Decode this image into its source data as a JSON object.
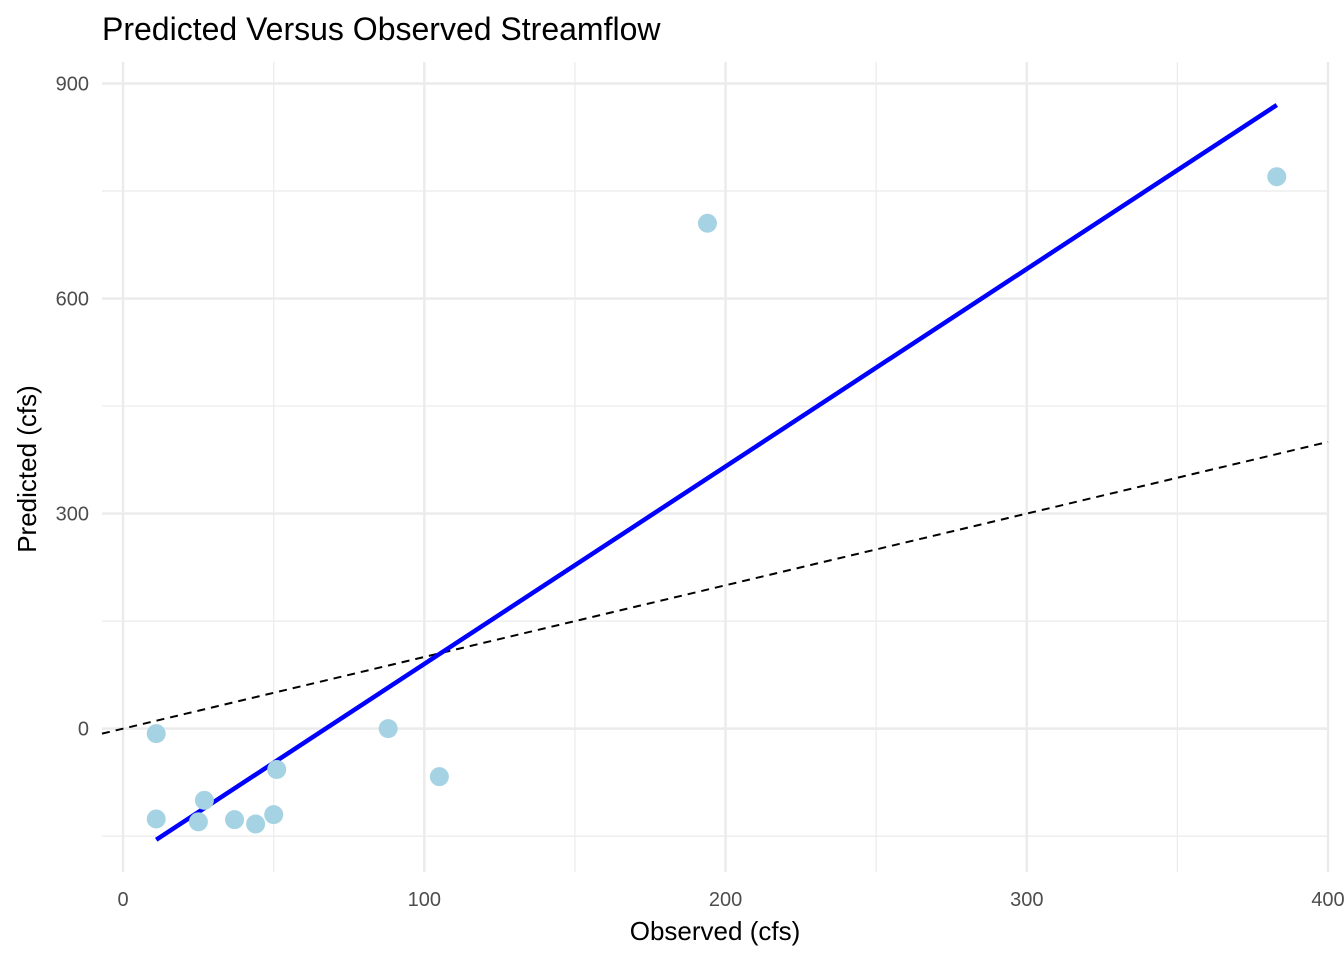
{
  "chart_data": {
    "type": "scatter",
    "title": "Predicted Versus Observed Streamflow",
    "xlabel": "Observed (cfs)",
    "ylabel": "Predicted (cfs)",
    "xlim": [
      -7,
      400
    ],
    "ylim": [
      -200,
      930
    ],
    "x_ticks": [
      0,
      100,
      200,
      300,
      400
    ],
    "y_ticks": [
      0,
      300,
      600,
      900
    ],
    "x_tick_labels": [
      "0",
      "100",
      "200",
      "300",
      "400"
    ],
    "y_tick_labels": [
      "0",
      "300",
      "600",
      "900"
    ],
    "grid": true,
    "points": [
      {
        "x": 11,
        "y": -7
      },
      {
        "x": 11,
        "y": -126
      },
      {
        "x": 25,
        "y": -130
      },
      {
        "x": 27,
        "y": -100
      },
      {
        "x": 37,
        "y": -127
      },
      {
        "x": 44,
        "y": -133
      },
      {
        "x": 50,
        "y": -120
      },
      {
        "x": 51,
        "y": -57
      },
      {
        "x": 88,
        "y": 0
      },
      {
        "x": 105,
        "y": -67
      },
      {
        "x": 194,
        "y": 705
      },
      {
        "x": 383,
        "y": 770
      }
    ],
    "fit_line": {
      "x": [
        11,
        383
      ],
      "y": [
        -155,
        870
      ]
    },
    "identity_line": {
      "x": [
        -7,
        400
      ],
      "y": [
        -7,
        400
      ]
    },
    "colors": {
      "points": "#a6d3e3",
      "fit_line": "#0000ff",
      "identity_line": "#000000",
      "grid": "#ebebeb"
    }
  }
}
